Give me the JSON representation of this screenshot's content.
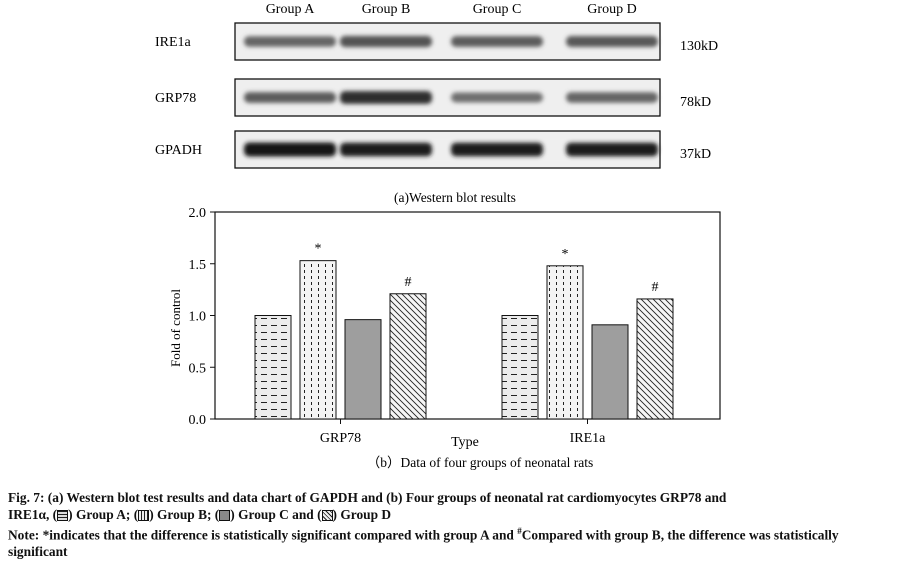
{
  "blot": {
    "groups": [
      "Group A",
      "Group B",
      "Group C",
      "Group D"
    ],
    "rows": [
      {
        "label": "IRE1a",
        "size": "130kD",
        "intensity": [
          0.55,
          0.65,
          0.6,
          0.62
        ]
      },
      {
        "label": "GRP78",
        "size": "78kD",
        "intensity": [
          0.6,
          0.85,
          0.5,
          0.55
        ]
      },
      {
        "label": "GPADH",
        "size": "37kD",
        "intensity": [
          1.0,
          0.95,
          0.95,
          0.95
        ]
      }
    ],
    "title": "(a)Western blot results"
  },
  "chart_data": {
    "type": "bar",
    "categories": [
      "GRP78",
      "IRE1a"
    ],
    "series": [
      {
        "name": "Group A",
        "values": [
          1.0,
          1.0
        ],
        "color": "#e8e8e8",
        "pattern": "dash-h"
      },
      {
        "name": "Group B",
        "values": [
          1.53,
          1.48
        ],
        "color": "#f2f2f2",
        "pattern": "dots-v"
      },
      {
        "name": "Group C",
        "values": [
          0.96,
          0.91
        ],
        "color": "#9e9e9e",
        "pattern": "solid"
      },
      {
        "name": "Group D",
        "values": [
          1.21,
          1.16
        ],
        "color": "#f5f5f5",
        "pattern": "diag"
      }
    ],
    "annotations": [
      {
        "category": "GRP78",
        "series": "Group B",
        "text": "*"
      },
      {
        "category": "GRP78",
        "series": "Group D",
        "text": "#"
      },
      {
        "category": "IRE1a",
        "series": "Group B",
        "text": "*"
      },
      {
        "category": "IRE1a",
        "series": "Group D",
        "text": "#"
      }
    ],
    "xlabel": "Type",
    "ylabel": "Fold of control",
    "ylim": [
      0,
      2.0
    ],
    "yticks": [
      "0.0",
      "0.5",
      "1.0",
      "1.5",
      "2.0"
    ],
    "subtitle": "（b）Data  of four groups of neonatal rats",
    "grid": false
  },
  "caption": {
    "line1": "Fig. 7:  (a) Western blot test results and data chart of GAPDH and (b) Four groups of neonatal rat cardiomyocytes GRP78 and",
    "ire_text": "IRE1α, (",
    "group_a": ") Group A; (",
    "group_b": ") Group B; (",
    "group_c": ") Group C and (",
    "group_d": ") Group D",
    "note_start": "Note: *indicates that the difference is statistically significant compared with group A and ",
    "note_sup": "#",
    "note_end": "Compared with group B, the difference was statistically significant"
  }
}
